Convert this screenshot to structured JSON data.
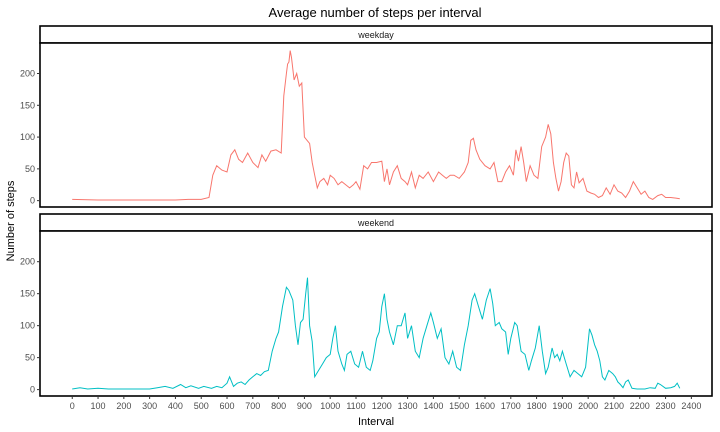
{
  "chart_data": {
    "type": "line",
    "title": "Average number of steps per interval",
    "xlabel": "Interval",
    "ylabel": "Number of steps",
    "xlim": [
      -125,
      2480
    ],
    "ylim": [
      -10,
      248
    ],
    "x_ticks": [
      0,
      100,
      200,
      300,
      400,
      500,
      600,
      700,
      800,
      900,
      1000,
      1100,
      1200,
      1300,
      1400,
      1500,
      1600,
      1700,
      1800,
      1900,
      2000,
      2100,
      2200,
      2300,
      2400
    ],
    "y_ticks": [
      0,
      50,
      100,
      150,
      200
    ],
    "grid": false,
    "legend": "none",
    "panels": [
      {
        "name": "weekday",
        "color": "#F8766D",
        "points": [
          [
            0,
            2
          ],
          [
            100,
            1
          ],
          [
            200,
            1
          ],
          [
            300,
            1
          ],
          [
            400,
            1
          ],
          [
            450,
            2
          ],
          [
            500,
            2
          ],
          [
            530,
            5
          ],
          [
            545,
            40
          ],
          [
            560,
            55
          ],
          [
            580,
            48
          ],
          [
            600,
            45
          ],
          [
            615,
            72
          ],
          [
            630,
            80
          ],
          [
            645,
            65
          ],
          [
            660,
            60
          ],
          [
            680,
            75
          ],
          [
            700,
            60
          ],
          [
            720,
            52
          ],
          [
            735,
            72
          ],
          [
            750,
            62
          ],
          [
            770,
            78
          ],
          [
            790,
            80
          ],
          [
            810,
            75
          ],
          [
            820,
            165
          ],
          [
            830,
            200
          ],
          [
            835,
            215
          ],
          [
            840,
            218
          ],
          [
            845,
            236
          ],
          [
            850,
            225
          ],
          [
            860,
            190
          ],
          [
            870,
            200
          ],
          [
            880,
            180
          ],
          [
            890,
            185
          ],
          [
            900,
            100
          ],
          [
            910,
            95
          ],
          [
            920,
            90
          ],
          [
            930,
            60
          ],
          [
            940,
            40
          ],
          [
            950,
            20
          ],
          [
            960,
            30
          ],
          [
            975,
            35
          ],
          [
            990,
            25
          ],
          [
            1000,
            40
          ],
          [
            1015,
            35
          ],
          [
            1030,
            25
          ],
          [
            1045,
            30
          ],
          [
            1060,
            25
          ],
          [
            1075,
            20
          ],
          [
            1090,
            25
          ],
          [
            1100,
            30
          ],
          [
            1115,
            18
          ],
          [
            1130,
            55
          ],
          [
            1145,
            50
          ],
          [
            1160,
            60
          ],
          [
            1180,
            60
          ],
          [
            1200,
            62
          ],
          [
            1210,
            30
          ],
          [
            1220,
            50
          ],
          [
            1230,
            25
          ],
          [
            1245,
            45
          ],
          [
            1260,
            55
          ],
          [
            1275,
            35
          ],
          [
            1290,
            30
          ],
          [
            1300,
            25
          ],
          [
            1315,
            45
          ],
          [
            1330,
            20
          ],
          [
            1345,
            40
          ],
          [
            1360,
            35
          ],
          [
            1380,
            45
          ],
          [
            1400,
            30
          ],
          [
            1420,
            45
          ],
          [
            1435,
            40
          ],
          [
            1450,
            35
          ],
          [
            1465,
            40
          ],
          [
            1480,
            40
          ],
          [
            1500,
            35
          ],
          [
            1520,
            45
          ],
          [
            1535,
            60
          ],
          [
            1545,
            95
          ],
          [
            1555,
            98
          ],
          [
            1565,
            80
          ],
          [
            1580,
            65
          ],
          [
            1600,
            55
          ],
          [
            1620,
            50
          ],
          [
            1635,
            60
          ],
          [
            1650,
            30
          ],
          [
            1665,
            30
          ],
          [
            1680,
            45
          ],
          [
            1695,
            55
          ],
          [
            1710,
            40
          ],
          [
            1720,
            80
          ],
          [
            1730,
            62
          ],
          [
            1740,
            85
          ],
          [
            1750,
            60
          ],
          [
            1760,
            30
          ],
          [
            1775,
            55
          ],
          [
            1790,
            40
          ],
          [
            1805,
            35
          ],
          [
            1820,
            85
          ],
          [
            1835,
            100
          ],
          [
            1845,
            120
          ],
          [
            1855,
            105
          ],
          [
            1865,
            60
          ],
          [
            1875,
            35
          ],
          [
            1885,
            15
          ],
          [
            1895,
            30
          ],
          [
            1905,
            60
          ],
          [
            1915,
            75
          ],
          [
            1925,
            70
          ],
          [
            1935,
            25
          ],
          [
            1945,
            20
          ],
          [
            1955,
            45
          ],
          [
            1965,
            28
          ],
          [
            1980,
            35
          ],
          [
            1995,
            15
          ],
          [
            2010,
            12
          ],
          [
            2025,
            10
          ],
          [
            2040,
            5
          ],
          [
            2055,
            8
          ],
          [
            2070,
            20
          ],
          [
            2085,
            10
          ],
          [
            2100,
            25
          ],
          [
            2115,
            15
          ],
          [
            2130,
            12
          ],
          [
            2145,
            5
          ],
          [
            2160,
            15
          ],
          [
            2175,
            30
          ],
          [
            2190,
            20
          ],
          [
            2205,
            10
          ],
          [
            2220,
            15
          ],
          [
            2235,
            5
          ],
          [
            2250,
            2
          ],
          [
            2270,
            8
          ],
          [
            2285,
            10
          ],
          [
            2300,
            5
          ],
          [
            2320,
            5
          ],
          [
            2340,
            4
          ],
          [
            2355,
            3
          ]
        ]
      },
      {
        "name": "weekend",
        "color": "#00BFC4",
        "points": [
          [
            0,
            1
          ],
          [
            30,
            3
          ],
          [
            60,
            1
          ],
          [
            100,
            2
          ],
          [
            140,
            1
          ],
          [
            200,
            1
          ],
          [
            300,
            1
          ],
          [
            330,
            3
          ],
          [
            360,
            5
          ],
          [
            390,
            2
          ],
          [
            420,
            8
          ],
          [
            440,
            3
          ],
          [
            460,
            6
          ],
          [
            490,
            2
          ],
          [
            510,
            5
          ],
          [
            540,
            2
          ],
          [
            560,
            5
          ],
          [
            580,
            3
          ],
          [
            600,
            10
          ],
          [
            610,
            20
          ],
          [
            625,
            5
          ],
          [
            640,
            10
          ],
          [
            655,
            12
          ],
          [
            670,
            8
          ],
          [
            685,
            15
          ],
          [
            700,
            20
          ],
          [
            715,
            25
          ],
          [
            730,
            22
          ],
          [
            745,
            28
          ],
          [
            760,
            30
          ],
          [
            775,
            60
          ],
          [
            790,
            80
          ],
          [
            800,
            90
          ],
          [
            815,
            130
          ],
          [
            830,
            160
          ],
          [
            840,
            155
          ],
          [
            855,
            140
          ],
          [
            865,
            100
          ],
          [
            875,
            70
          ],
          [
            885,
            105
          ],
          [
            895,
            110
          ],
          [
            905,
            150
          ],
          [
            912,
            175
          ],
          [
            920,
            100
          ],
          [
            930,
            75
          ],
          [
            940,
            20
          ],
          [
            955,
            30
          ],
          [
            970,
            40
          ],
          [
            985,
            50
          ],
          [
            1000,
            55
          ],
          [
            1010,
            80
          ],
          [
            1020,
            100
          ],
          [
            1030,
            60
          ],
          [
            1045,
            40
          ],
          [
            1055,
            30
          ],
          [
            1065,
            55
          ],
          [
            1080,
            60
          ],
          [
            1095,
            40
          ],
          [
            1110,
            35
          ],
          [
            1125,
            60
          ],
          [
            1140,
            35
          ],
          [
            1155,
            30
          ],
          [
            1165,
            45
          ],
          [
            1180,
            80
          ],
          [
            1190,
            90
          ],
          [
            1200,
            130
          ],
          [
            1210,
            150
          ],
          [
            1220,
            110
          ],
          [
            1230,
            90
          ],
          [
            1245,
            70
          ],
          [
            1260,
            100
          ],
          [
            1275,
            100
          ],
          [
            1290,
            120
          ],
          [
            1300,
            80
          ],
          [
            1315,
            100
          ],
          [
            1330,
            60
          ],
          [
            1345,
            50
          ],
          [
            1360,
            80
          ],
          [
            1375,
            100
          ],
          [
            1390,
            120
          ],
          [
            1400,
            105
          ],
          [
            1415,
            80
          ],
          [
            1430,
            95
          ],
          [
            1445,
            50
          ],
          [
            1460,
            40
          ],
          [
            1475,
            60
          ],
          [
            1490,
            35
          ],
          [
            1505,
            30
          ],
          [
            1520,
            70
          ],
          [
            1535,
            100
          ],
          [
            1550,
            140
          ],
          [
            1560,
            150
          ],
          [
            1575,
            130
          ],
          [
            1590,
            110
          ],
          [
            1605,
            140
          ],
          [
            1620,
            158
          ],
          [
            1630,
            135
          ],
          [
            1640,
            100
          ],
          [
            1655,
            105
          ],
          [
            1665,
            95
          ],
          [
            1680,
            90
          ],
          [
            1690,
            55
          ],
          [
            1700,
            80
          ],
          [
            1715,
            105
          ],
          [
            1725,
            100
          ],
          [
            1740,
            60
          ],
          [
            1755,
            55
          ],
          [
            1770,
            30
          ],
          [
            1780,
            45
          ],
          [
            1795,
            65
          ],
          [
            1810,
            100
          ],
          [
            1822,
            60
          ],
          [
            1835,
            25
          ],
          [
            1845,
            35
          ],
          [
            1860,
            65
          ],
          [
            1870,
            50
          ],
          [
            1880,
            55
          ],
          [
            1890,
            45
          ],
          [
            1900,
            60
          ],
          [
            1915,
            40
          ],
          [
            1930,
            20
          ],
          [
            1945,
            30
          ],
          [
            1960,
            25
          ],
          [
            1975,
            20
          ],
          [
            1990,
            35
          ],
          [
            2005,
            95
          ],
          [
            2015,
            85
          ],
          [
            2025,
            70
          ],
          [
            2035,
            60
          ],
          [
            2045,
            45
          ],
          [
            2055,
            20
          ],
          [
            2065,
            15
          ],
          [
            2080,
            30
          ],
          [
            2095,
            25
          ],
          [
            2105,
            20
          ],
          [
            2115,
            12
          ],
          [
            2125,
            8
          ],
          [
            2135,
            3
          ],
          [
            2145,
            12
          ],
          [
            2155,
            15
          ],
          [
            2170,
            2
          ],
          [
            2190,
            1
          ],
          [
            2220,
            1
          ],
          [
            2240,
            3
          ],
          [
            2260,
            2
          ],
          [
            2270,
            10
          ],
          [
            2280,
            8
          ],
          [
            2300,
            2
          ],
          [
            2320,
            3
          ],
          [
            2335,
            5
          ],
          [
            2345,
            10
          ],
          [
            2355,
            2
          ]
        ]
      }
    ]
  }
}
